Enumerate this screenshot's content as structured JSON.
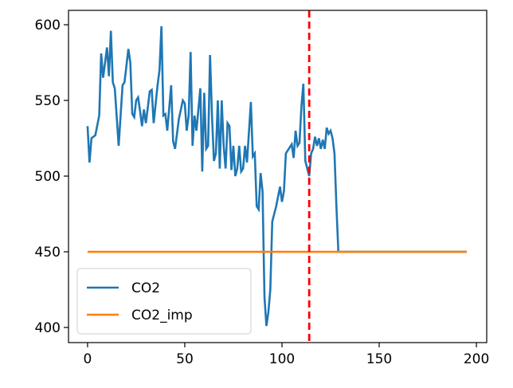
{
  "chart_data": {
    "type": "line",
    "series": [
      {
        "name": "CO2",
        "color": "#1f77b4",
        "x": [
          0,
          1,
          2,
          4,
          6,
          7,
          8,
          10,
          11,
          12,
          13,
          14,
          16,
          18,
          19,
          21,
          22,
          23,
          24,
          25,
          26,
          27,
          28,
          29,
          30,
          32,
          33,
          34,
          36,
          37,
          38,
          39,
          40,
          41,
          43,
          44,
          45,
          47,
          49,
          50,
          51,
          52,
          53,
          54,
          55,
          56,
          58,
          59,
          60,
          61,
          62,
          63,
          64,
          65,
          66,
          67,
          68,
          69,
          70,
          71,
          72,
          73,
          74,
          75,
          76,
          77,
          78,
          79,
          80,
          81,
          82,
          84,
          85,
          86,
          87,
          88,
          89,
          90,
          91,
          92,
          93,
          94,
          95,
          97,
          99,
          100,
          101,
          102,
          103,
          105,
          106,
          107,
          108,
          109,
          110,
          111,
          112,
          113,
          114,
          115,
          116,
          117,
          118,
          119,
          120,
          121,
          122,
          123,
          124,
          125,
          126,
          127,
          128,
          129,
          195
        ],
        "values": [
          533,
          509,
          525,
          527,
          540,
          581,
          565,
          585,
          566,
          596,
          562,
          558,
          520,
          560,
          562,
          584,
          575,
          541,
          539,
          550,
          552,
          543,
          533,
          544,
          535,
          556,
          557,
          535,
          560,
          570,
          599,
          540,
          541,
          530,
          560,
          523,
          518,
          538,
          550,
          548,
          530,
          540,
          582,
          520,
          540,
          530,
          558,
          503,
          555,
          518,
          520,
          580,
          540,
          510,
          515,
          550,
          505,
          550,
          520,
          505,
          535,
          533,
          504,
          520,
          500,
          505,
          520,
          503,
          505,
          520,
          509,
          549,
          513,
          515,
          480,
          478,
          502,
          490,
          420,
          401,
          410,
          425,
          470,
          480,
          493,
          483,
          490,
          515,
          517,
          521,
          512,
          530,
          520,
          522,
          546,
          561,
          510,
          505,
          500,
          515,
          518,
          526,
          520,
          525,
          518,
          524,
          518,
          532,
          528,
          530,
          525,
          515,
          480,
          450,
          450
        ]
      },
      {
        "name": "CO2_imp",
        "color": "#ff7f0e",
        "x": [
          0,
          195
        ],
        "values": [
          450,
          450
        ]
      }
    ],
    "vline": {
      "x": 114,
      "color": "#ff0000"
    },
    "xlim": [
      -9.8,
      205.3
    ],
    "ylim": [
      390,
      609.5
    ],
    "xticks": [
      0,
      50,
      100,
      150,
      200
    ],
    "yticks": [
      400,
      450,
      500,
      550,
      600
    ],
    "legend": "lower left"
  }
}
